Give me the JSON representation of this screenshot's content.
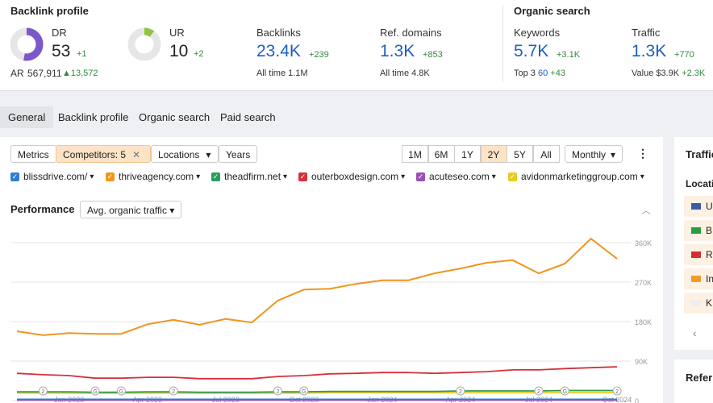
{
  "header": {
    "backlink_title": "Backlink profile",
    "organic_title": "Organic search",
    "dr": {
      "label": "DR",
      "value": "53",
      "percent": 53,
      "change": "+1",
      "color": "#7b57c9"
    },
    "ur": {
      "label": "UR",
      "value": "10",
      "percent": 10,
      "change": "+2",
      "color": "#8cc63f"
    },
    "ar": {
      "label": "AR",
      "value": "567,911",
      "change": "▲13,572"
    },
    "backlinks": {
      "label": "Backlinks",
      "value": "23.4K",
      "change": "+239",
      "sub_label": "All time",
      "sub_value": "1.1M"
    },
    "ref_domains": {
      "label": "Ref. domains",
      "value": "1.3K",
      "change": "+853",
      "sub_label": "All time",
      "sub_value": "4.8K"
    },
    "keywords": {
      "label": "Keywords",
      "value": "5.7K",
      "change": "+3.1K",
      "sub_label": "Top 3",
      "sub_value": "60",
      "sub_change": "+43"
    },
    "traffic": {
      "label": "Traffic",
      "value": "1.3K",
      "change": "+770",
      "sub_label": "Value",
      "sub_value": "$3.9K",
      "sub_change": "+2.3K"
    }
  },
  "tabs": [
    "General",
    "Backlink profile",
    "Organic search",
    "Paid search"
  ],
  "toolbar": {
    "filters": [
      "Metrics",
      "Competitors: 5",
      "Locations",
      "Years"
    ],
    "ranges": [
      "1M",
      "6M",
      "1Y",
      "2Y",
      "5Y",
      "All"
    ],
    "selected_range": 3,
    "interval": "Monthly"
  },
  "performance": {
    "title": "Performance",
    "metric": "Avg. organic traffic"
  },
  "side_panel": {
    "title": "Traffic",
    "locations_title": "Locatio",
    "locations": [
      "U",
      "B",
      "R",
      "In",
      "K"
    ],
    "bottom_title": "Referr"
  },
  "chart_data": {
    "type": "line",
    "categories": [
      null,
      null,
      "Jan 2023",
      null,
      null,
      "Apr 2023",
      null,
      null,
      "Jul 2023",
      null,
      null,
      "Oct 2023",
      null,
      null,
      "Jan 2024",
      null,
      null,
      "Apr 2024",
      null,
      null,
      "Jul 2024",
      null,
      null,
      "Oct 2024"
    ],
    "ylim": [
      0,
      375000
    ],
    "yticks": [
      {
        "value": 0,
        "label": "0"
      },
      {
        "value": 90000,
        "label": "90K"
      },
      {
        "value": 180000,
        "label": "180K"
      },
      {
        "value": 270000,
        "label": "270K"
      },
      {
        "value": 360000,
        "label": "360K"
      }
    ],
    "grid": true,
    "series": [
      {
        "name": "blissdrive.com/",
        "color": "#2d7fd3",
        "values": [
          3000,
          3000,
          3000,
          3000,
          3000,
          3000,
          3000,
          3000,
          3000,
          3000,
          3000,
          3000,
          3000,
          3000,
          3000,
          3000,
          3000,
          3000,
          3000,
          3000,
          3000,
          3000,
          3000,
          3000
        ]
      },
      {
        "name": "thriveagency.com",
        "color": "#f0961e",
        "values": [
          158000,
          149000,
          154000,
          152000,
          152000,
          174000,
          184000,
          173000,
          186000,
          178000,
          228000,
          253000,
          255000,
          266000,
          274000,
          274000,
          290000,
          301000,
          314000,
          320000,
          290000,
          312000,
          369000,
          323000
        ]
      },
      {
        "name": "theadfirm.net",
        "color": "#2a9d5a",
        "values": [
          20000,
          20000,
          20000,
          19000,
          19000,
          20000,
          20000,
          19000,
          19000,
          19000,
          20000,
          20000,
          21000,
          21000,
          21000,
          21000,
          21000,
          22000,
          22000,
          22000,
          22000,
          23000,
          23000,
          23000
        ]
      },
      {
        "name": "outerboxdesign.com",
        "color": "#d9303a",
        "values": [
          62000,
          59000,
          57000,
          51000,
          51000,
          53000,
          53000,
          50000,
          50000,
          50000,
          55000,
          57000,
          61000,
          62000,
          64000,
          64000,
          62000,
          64000,
          66000,
          70000,
          70000,
          73000,
          75000,
          77000
        ]
      },
      {
        "name": "acuteseo.com",
        "color": "#9b4fb8",
        "values": [
          1000,
          1000,
          1000,
          1000,
          1000,
          1000,
          1000,
          1000,
          1000,
          1000,
          1000,
          1000,
          1000,
          1000,
          1000,
          1000,
          1000,
          1000,
          1000,
          1000,
          1000,
          1000,
          1000,
          1000
        ]
      },
      {
        "name": "avidonmarketinggroup.com",
        "color": "#e8cc1c",
        "values": [
          17000,
          17000,
          17000,
          17000,
          17000,
          17000,
          17000,
          17000,
          17000,
          17000,
          17000,
          17000,
          18000,
          18000,
          18000,
          18000,
          18000,
          18000,
          18000,
          18000,
          18000,
          18000,
          18000,
          18000
        ]
      }
    ],
    "annotations": [
      {
        "index": 1,
        "label": "2"
      },
      {
        "index": 3,
        "label": "G"
      },
      {
        "index": 4,
        "label": "G"
      },
      {
        "index": 6,
        "label": "2"
      },
      {
        "index": 10,
        "label": "2"
      },
      {
        "index": 11,
        "label": "G"
      },
      {
        "index": 17,
        "label": "2"
      },
      {
        "index": 20,
        "label": "2"
      },
      {
        "index": 21,
        "label": "G"
      },
      {
        "index": 23,
        "label": "2"
      }
    ]
  }
}
